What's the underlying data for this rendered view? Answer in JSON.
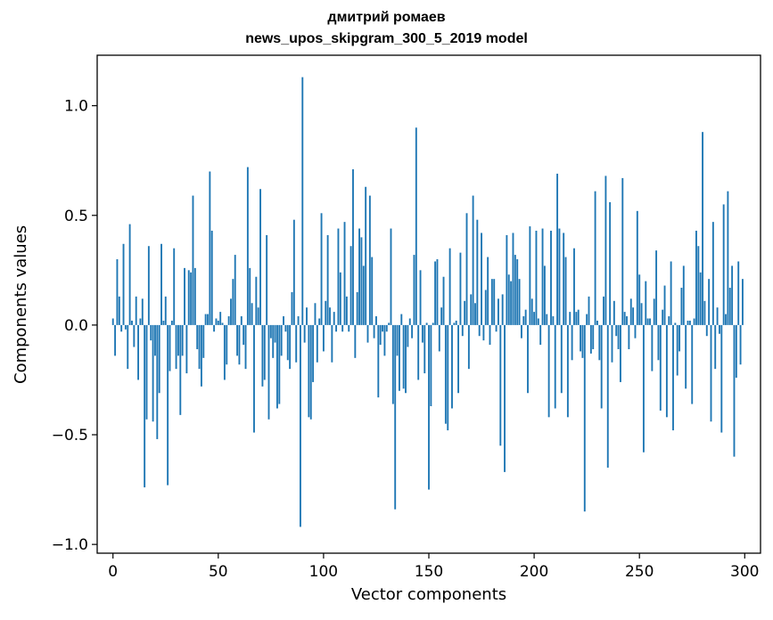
{
  "chart_data": {
    "type": "bar",
    "title": [
      "дмитрий ромаев",
      "news_upos_skipgram_300_5_2019 model"
    ],
    "xlabel": "Vector components",
    "ylabel": "Components values",
    "xlim": [
      -7.5,
      307.5
    ],
    "ylim": [
      -1.04,
      1.23
    ],
    "xticks": [
      0,
      50,
      100,
      150,
      200,
      250,
      300
    ],
    "yticks": [
      -1.0,
      -0.5,
      0.0,
      0.5,
      1.0
    ],
    "ytick_labels": [
      "−1.0",
      "−0.5",
      "0.0",
      "0.5",
      "1.0"
    ],
    "grid": false,
    "bar_color": "#1f77b4",
    "x": [
      0,
      1,
      2,
      3,
      4,
      5,
      6,
      7,
      8,
      9,
      10,
      11,
      12,
      13,
      14,
      15,
      16,
      17,
      18,
      19,
      20,
      21,
      22,
      23,
      24,
      25,
      26,
      27,
      28,
      29,
      30,
      31,
      32,
      33,
      34,
      35,
      36,
      37,
      38,
      39,
      40,
      41,
      42,
      43,
      44,
      45,
      46,
      47,
      48,
      49,
      50,
      51,
      52,
      53,
      54,
      55,
      56,
      57,
      58,
      59,
      60,
      61,
      62,
      63,
      64,
      65,
      66,
      67,
      68,
      69,
      70,
      71,
      72,
      73,
      74,
      75,
      76,
      77,
      78,
      79,
      80,
      81,
      82,
      83,
      84,
      85,
      86,
      87,
      88,
      89,
      90,
      91,
      92,
      93,
      94,
      95,
      96,
      97,
      98,
      99,
      100,
      101,
      102,
      103,
      104,
      105,
      106,
      107,
      108,
      109,
      110,
      111,
      112,
      113,
      114,
      115,
      116,
      117,
      118,
      119,
      120,
      121,
      122,
      123,
      124,
      125,
      126,
      127,
      128,
      129,
      130,
      131,
      132,
      133,
      134,
      135,
      136,
      137,
      138,
      139,
      140,
      141,
      142,
      143,
      144,
      145,
      146,
      147,
      148,
      149,
      150,
      151,
      152,
      153,
      154,
      155,
      156,
      157,
      158,
      159,
      160,
      161,
      162,
      163,
      164,
      165,
      166,
      167,
      168,
      169,
      170,
      171,
      172,
      173,
      174,
      175,
      176,
      177,
      178,
      179,
      180,
      181,
      182,
      183,
      184,
      185,
      186,
      187,
      188,
      189,
      190,
      191,
      192,
      193,
      194,
      195,
      196,
      197,
      198,
      199,
      200,
      201,
      202,
      203,
      204,
      205,
      206,
      207,
      208,
      209,
      210,
      211,
      212,
      213,
      214,
      215,
      216,
      217,
      218,
      219,
      220,
      221,
      222,
      223,
      224,
      225,
      226,
      227,
      228,
      229,
      230,
      231,
      232,
      233,
      234,
      235,
      236,
      237,
      238,
      239,
      240,
      241,
      242,
      243,
      244,
      245,
      246,
      247,
      248,
      249,
      250,
      251,
      252,
      253,
      254,
      255,
      256,
      257,
      258,
      259,
      260,
      261,
      262,
      263,
      264,
      265,
      266,
      267,
      268,
      269,
      270,
      271,
      272,
      273,
      274,
      275,
      276,
      277,
      278,
      279,
      280,
      281,
      282,
      283,
      284,
      285,
      286,
      287,
      288,
      289,
      290,
      291,
      292,
      293,
      294,
      295,
      296,
      297,
      298,
      299
    ],
    "values": [
      0.03,
      -0.14,
      0.3,
      0.13,
      -0.03,
      0.37,
      -0.02,
      -0.2,
      0.46,
      0.02,
      -0.1,
      0.13,
      -0.25,
      0.03,
      0.12,
      -0.74,
      -0.43,
      0.36,
      -0.07,
      -0.44,
      -0.14,
      -0.52,
      -0.31,
      0.37,
      0.02,
      0.13,
      -0.73,
      -0.21,
      0.02,
      0.35,
      -0.2,
      -0.14,
      -0.41,
      -0.14,
      0.26,
      -0.22,
      0.25,
      0.24,
      0.59,
      0.26,
      -0.11,
      -0.2,
      -0.28,
      -0.15,
      0.05,
      0.05,
      0.7,
      0.43,
      -0.03,
      0.03,
      0.02,
      0.06,
      0.01,
      -0.25,
      -0.18,
      0.04,
      0.12,
      0.21,
      0.32,
      -0.14,
      -0.18,
      0.04,
      -0.09,
      -0.2,
      0.72,
      0.26,
      0.1,
      -0.49,
      0.22,
      0.08,
      0.62,
      -0.28,
      -0.25,
      0.41,
      -0.43,
      -0.06,
      -0.15,
      -0.08,
      -0.38,
      -0.36,
      -0.14,
      0.04,
      -0.03,
      -0.16,
      -0.2,
      0.15,
      0.48,
      -0.17,
      0.04,
      -0.92,
      1.13,
      -0.08,
      0.08,
      -0.42,
      -0.43,
      -0.26,
      0.1,
      -0.17,
      0.03,
      0.51,
      -0.12,
      0.11,
      0.41,
      0.08,
      -0.17,
      0.06,
      -0.03,
      0.44,
      0.24,
      -0.03,
      0.47,
      0.13,
      -0.03,
      0.36,
      0.71,
      -0.15,
      0.15,
      0.44,
      0.4,
      0.27,
      0.63,
      -0.08,
      0.59,
      0.31,
      -0.06,
      0.04,
      -0.33,
      -0.09,
      -0.03,
      -0.14,
      -0.03,
      0.01,
      0.44,
      -0.36,
      -0.84,
      -0.14,
      -0.3,
      0.05,
      -0.29,
      -0.31,
      -0.1,
      0.03,
      -0.06,
      0.32,
      0.9,
      -0.25,
      0.25,
      -0.08,
      -0.22,
      0.01,
      -0.75,
      -0.37,
      0.01,
      0.29,
      0.3,
      -0.12,
      0.08,
      0.22,
      -0.45,
      -0.48,
      0.35,
      -0.38,
      0.01,
      0.02,
      -0.31,
      0.33,
      -0.05,
      0.11,
      0.51,
      -0.2,
      0.14,
      0.59,
      0.1,
      0.48,
      -0.05,
      0.42,
      -0.07,
      0.16,
      0.31,
      -0.09,
      0.21,
      0.21,
      -0.03,
      0.12,
      -0.55,
      0.14,
      -0.67,
      0.41,
      0.23,
      0.2,
      0.42,
      0.32,
      0.3,
      0.21,
      -0.06,
      0.04,
      0.07,
      -0.31,
      0.45,
      0.12,
      0.06,
      0.43,
      0.03,
      -0.09,
      0.44,
      0.27,
      0.05,
      -0.42,
      0.43,
      0.04,
      -0.38,
      0.69,
      0.44,
      -0.31,
      0.42,
      0.31,
      -0.42,
      0.06,
      -0.16,
      0.35,
      0.06,
      0.07,
      -0.12,
      -0.15,
      -0.85,
      0.05,
      0.13,
      -0.13,
      -0.11,
      0.61,
      0.02,
      -0.16,
      -0.38,
      0.13,
      0.68,
      -0.65,
      0.56,
      -0.17,
      0.11,
      -0.05,
      -0.11,
      -0.26,
      0.67,
      0.06,
      0.04,
      -0.11,
      0.12,
      0.08,
      -0.06,
      0.52,
      0.23,
      0.1,
      -0.58,
      0.2,
      0.03,
      0.03,
      -0.21,
      0.12,
      0.34,
      -0.16,
      -0.39,
      0.07,
      0.18,
      -0.42,
      0.04,
      0.29,
      -0.48,
      0.01,
      -0.23,
      -0.12,
      0.17,
      0.27,
      -0.29,
      0.02,
      0.02,
      -0.36,
      0.03,
      0.43,
      0.36,
      0.24,
      0.88,
      0.11,
      -0.05,
      0.21,
      -0.44,
      0.47,
      -0.2,
      0.08,
      -0.04,
      -0.49,
      0.55,
      0.05,
      0.61,
      0.17,
      0.27,
      -0.6,
      -0.24,
      0.29,
      -0.18,
      0.21
    ]
  }
}
